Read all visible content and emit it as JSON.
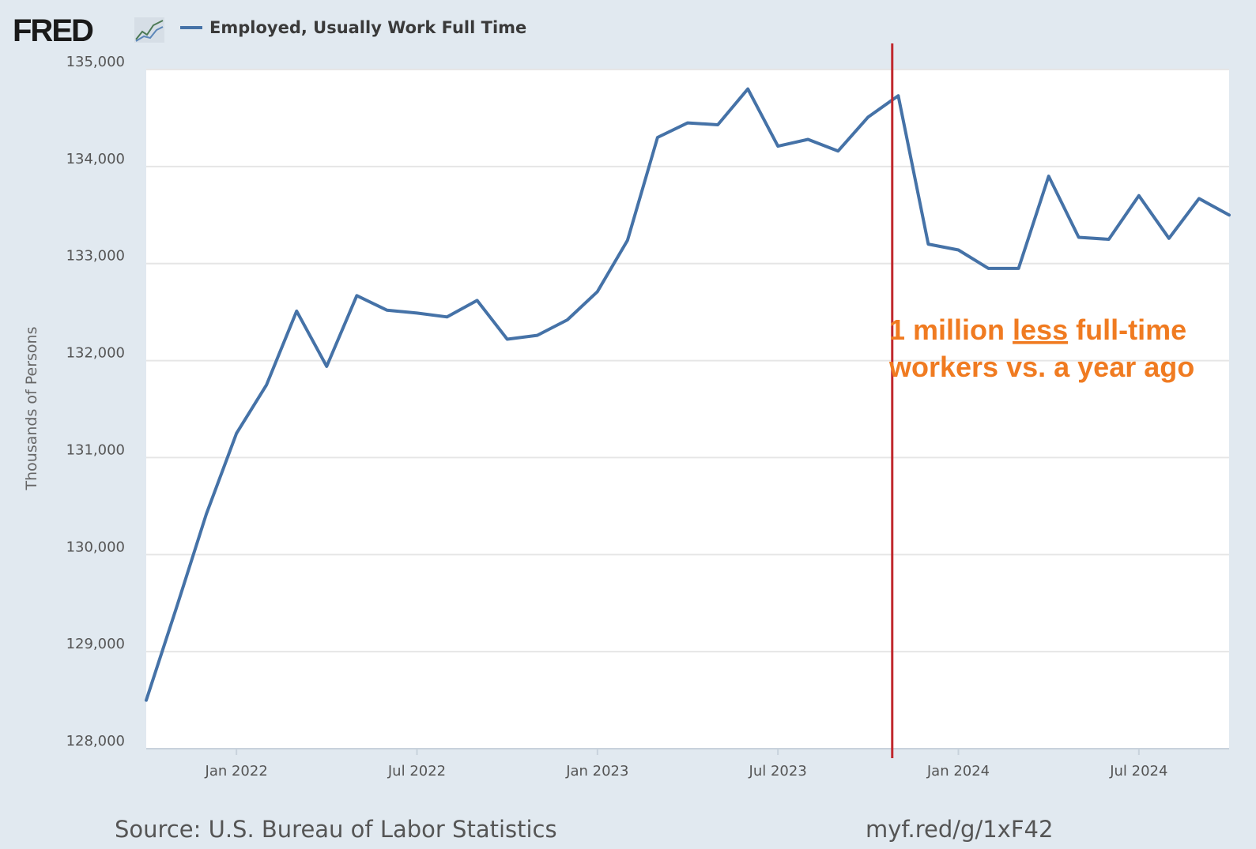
{
  "header": {
    "logo_text": "FRED",
    "logo_icon": "line-chart-icon",
    "legend_label": "Employed, Usually Work Full Time"
  },
  "footer": {
    "source": "Source: U.S. Bureau of Labor Statistics",
    "link": "myf.red/g/1xF42"
  },
  "annotation": {
    "line1_pre": "1 million ",
    "line1_underlined": "less",
    "line1_post": " full-time",
    "line2": "workers vs. a year ago"
  },
  "colors": {
    "series": "#4572a7",
    "annotation": "#f07b21",
    "marker": "#c0282d",
    "background": "#e1e9f0",
    "plot": "#ffffff"
  },
  "chart_data": {
    "type": "line",
    "title": "",
    "xlabel": "",
    "ylabel": "Thousands of Persons",
    "ylim": [
      128000,
      135000
    ],
    "y_ticks": [
      128000,
      129000,
      130000,
      131000,
      132000,
      133000,
      134000,
      135000
    ],
    "y_tick_labels": [
      "128,000",
      "129,000",
      "130,000",
      "131,000",
      "132,000",
      "133,000",
      "134,000",
      "135,000"
    ],
    "xlim": [
      "2021-10",
      "2024-10"
    ],
    "x_ticks": [
      "2022-01",
      "2022-07",
      "2023-01",
      "2023-07",
      "2024-01",
      "2024-07"
    ],
    "x_tick_labels": [
      "Jan 2022",
      "Jul 2022",
      "Jan 2023",
      "Jul 2023",
      "Jan 2024",
      "Jul 2024"
    ],
    "grid": true,
    "legend_position": "top-left",
    "vertical_marker": "2023-10-25",
    "series": [
      {
        "name": "Employed, Usually Work Full Time",
        "color": "#4572a7",
        "x": [
          "2021-10",
          "2021-11",
          "2021-12",
          "2022-01",
          "2022-02",
          "2022-03",
          "2022-04",
          "2022-05",
          "2022-06",
          "2022-07",
          "2022-08",
          "2022-09",
          "2022-10",
          "2022-11",
          "2022-12",
          "2023-01",
          "2023-02",
          "2023-03",
          "2023-04",
          "2023-05",
          "2023-06",
          "2023-07",
          "2023-08",
          "2023-09",
          "2023-10",
          "2023-11",
          "2023-12",
          "2024-01",
          "2024-02",
          "2024-03",
          "2024-04",
          "2024-05",
          "2024-06",
          "2024-07",
          "2024-08",
          "2024-09",
          "2024-10"
        ],
        "values": [
          128500,
          129450,
          130420,
          131250,
          131750,
          132510,
          131940,
          132670,
          132520,
          132490,
          132450,
          132620,
          132220,
          132260,
          132420,
          132710,
          133240,
          134300,
          134450,
          134430,
          134800,
          134210,
          134280,
          134160,
          134510,
          134730,
          133200,
          133140,
          132950,
          132950,
          133900,
          133270,
          133250,
          133700,
          133260,
          133670,
          133500
        ]
      }
    ]
  }
}
